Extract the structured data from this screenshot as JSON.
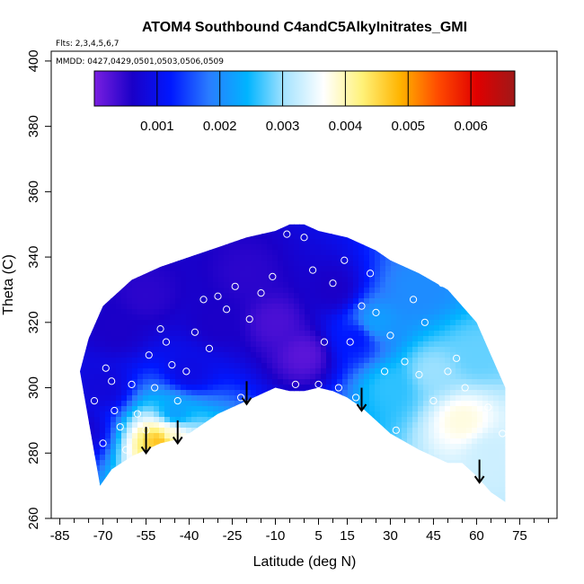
{
  "chart_data": {
    "type": "heatmap",
    "title": "ATOM4 Southbound C4andC5AlkyInitrates_GMI",
    "subtitle_flights": "Flts: 2,3,4,5,6,7",
    "subtitle_dates": "MMDD: 0427,0429,0501,0503,0506,0509",
    "xlabel": "Latitude (deg N)",
    "ylabel": "Theta (C)",
    "xlim": [
      -88,
      88
    ],
    "ylim": [
      260,
      403
    ],
    "x_ticks": [
      -85,
      -70,
      -55,
      -40,
      -25,
      -10,
      5,
      15,
      30,
      45,
      60,
      75
    ],
    "x_tick_labels": [
      "-85",
      "-70",
      "-55",
      "-40",
      "-25",
      "-10",
      "5",
      "15",
      "30",
      "45",
      "60",
      "75"
    ],
    "y_ticks": [
      260,
      280,
      300,
      320,
      340,
      360,
      380,
      400
    ],
    "y_tick_labels": [
      "260",
      "280",
      "300",
      "320",
      "340",
      "360",
      "380",
      "400"
    ],
    "colorbar": {
      "range": [
        0,
        0.0067
      ],
      "tick_values": [
        0.001,
        0.002,
        0.003,
        0.004,
        0.005,
        0.006
      ],
      "tick_labels": [
        "0.001",
        "0.002",
        "0.003",
        "0.004",
        "0.005",
        "0.006"
      ],
      "colors": [
        "#7a1fe0",
        "#1a00c8",
        "#0018ff",
        "#2a7cff",
        "#00b4ff",
        "#a8e4ff",
        "#ffffff",
        "#fff27a",
        "#ffb400",
        "#ff4a00",
        "#e00000",
        "#a01818"
      ]
    },
    "surface_boundary": {
      "latitude": [
        -71,
        -67,
        -60,
        -55,
        -50,
        -45,
        -40,
        -35,
        -30,
        -25,
        -20,
        -15,
        -10,
        -5,
        0,
        5,
        10,
        15,
        20,
        25,
        30,
        40,
        50,
        55,
        60,
        65,
        70
      ],
      "theta": [
        270,
        275,
        279,
        281,
        283,
        284,
        286,
        289,
        292,
        294,
        296,
        298,
        300,
        299,
        299,
        300,
        299,
        297,
        294,
        290,
        286,
        281,
        277,
        277,
        273,
        268,
        265
      ]
    },
    "top_boundary": {
      "latitude": [
        -78,
        -75,
        -70,
        -60,
        -50,
        -40,
        -30,
        -20,
        -10,
        -5,
        0,
        5,
        10,
        15,
        20,
        25,
        30,
        40,
        50,
        55,
        60,
        65,
        70
      ],
      "theta": [
        305,
        315,
        325,
        333,
        337,
        340,
        343,
        346,
        348,
        350,
        350,
        348,
        347,
        346,
        344,
        342,
        339,
        335,
        330,
        325,
        320,
        310,
        300
      ]
    },
    "field_samples": [
      {
        "lat": -78,
        "theta": 287,
        "value": 0.0007
      },
      {
        "lat": -70,
        "theta": 300,
        "value": 0.0008
      },
      {
        "lat": -65,
        "theta": 318,
        "value": 0.0006
      },
      {
        "lat": -55,
        "theta": 328,
        "value": 0.0005
      },
      {
        "lat": -50,
        "theta": 284,
        "value": 0.0048
      },
      {
        "lat": -47,
        "theta": 286,
        "value": 0.0038
      },
      {
        "lat": -45,
        "theta": 292,
        "value": 0.0022
      },
      {
        "lat": -40,
        "theta": 305,
        "value": 0.0009
      },
      {
        "lat": -30,
        "theta": 320,
        "value": 0.0006
      },
      {
        "lat": -20,
        "theta": 335,
        "value": 0.0005
      },
      {
        "lat": -10,
        "theta": 320,
        "value": 0.0003
      },
      {
        "lat": 0,
        "theta": 310,
        "value": 0.0002
      },
      {
        "lat": 10,
        "theta": 330,
        "value": 0.0006
      },
      {
        "lat": 18,
        "theta": 315,
        "value": 0.0012
      },
      {
        "lat": 25,
        "theta": 320,
        "value": 0.0022
      },
      {
        "lat": 30,
        "theta": 300,
        "value": 0.0026
      },
      {
        "lat": 40,
        "theta": 330,
        "value": 0.002
      },
      {
        "lat": 45,
        "theta": 305,
        "value": 0.003
      },
      {
        "lat": 55,
        "theta": 290,
        "value": 0.0038
      },
      {
        "lat": 60,
        "theta": 310,
        "value": 0.0028
      },
      {
        "lat": 65,
        "theta": 280,
        "value": 0.0033
      }
    ],
    "sample_points": [
      {
        "lat": -78,
        "theta": 286
      },
      {
        "lat": -73,
        "theta": 296
      },
      {
        "lat": -70,
        "theta": 283
      },
      {
        "lat": -69,
        "theta": 306
      },
      {
        "lat": -67,
        "theta": 302
      },
      {
        "lat": -66,
        "theta": 293
      },
      {
        "lat": -64,
        "theta": 288
      },
      {
        "lat": -62,
        "theta": 281
      },
      {
        "lat": -60,
        "theta": 301
      },
      {
        "lat": -58,
        "theta": 292
      },
      {
        "lat": -55,
        "theta": 287
      },
      {
        "lat": -54,
        "theta": 310
      },
      {
        "lat": -52,
        "theta": 300
      },
      {
        "lat": -50,
        "theta": 318
      },
      {
        "lat": -48,
        "theta": 314
      },
      {
        "lat": -46,
        "theta": 307
      },
      {
        "lat": -44,
        "theta": 296
      },
      {
        "lat": -41,
        "theta": 305
      },
      {
        "lat": -38,
        "theta": 317
      },
      {
        "lat": -35,
        "theta": 327
      },
      {
        "lat": -33,
        "theta": 312
      },
      {
        "lat": -30,
        "theta": 328
      },
      {
        "lat": -27,
        "theta": 324
      },
      {
        "lat": -24,
        "theta": 331
      },
      {
        "lat": -22,
        "theta": 297
      },
      {
        "lat": -19,
        "theta": 321
      },
      {
        "lat": -15,
        "theta": 329
      },
      {
        "lat": -11,
        "theta": 334
      },
      {
        "lat": -6,
        "theta": 347
      },
      {
        "lat": -3,
        "theta": 301
      },
      {
        "lat": 0,
        "theta": 346
      },
      {
        "lat": 3,
        "theta": 336
      },
      {
        "lat": 5,
        "theta": 301
      },
      {
        "lat": 7,
        "theta": 314
      },
      {
        "lat": 10,
        "theta": 332
      },
      {
        "lat": 12,
        "theta": 300
      },
      {
        "lat": 14,
        "theta": 339
      },
      {
        "lat": 16,
        "theta": 314
      },
      {
        "lat": 18,
        "theta": 297
      },
      {
        "lat": 20,
        "theta": 325
      },
      {
        "lat": 23,
        "theta": 335
      },
      {
        "lat": 25,
        "theta": 323
      },
      {
        "lat": 28,
        "theta": 305
      },
      {
        "lat": 30,
        "theta": 316
      },
      {
        "lat": 32,
        "theta": 287
      },
      {
        "lat": 35,
        "theta": 308
      },
      {
        "lat": 38,
        "theta": 327
      },
      {
        "lat": 40,
        "theta": 304
      },
      {
        "lat": 42,
        "theta": 320
      },
      {
        "lat": 45,
        "theta": 296
      },
      {
        "lat": 48,
        "theta": 332
      },
      {
        "lat": 50,
        "theta": 305
      },
      {
        "lat": 53,
        "theta": 309
      },
      {
        "lat": 56,
        "theta": 300
      },
      {
        "lat": 60,
        "theta": 327
      },
      {
        "lat": 64,
        "theta": 294
      },
      {
        "lat": 69,
        "theta": 286
      }
    ],
    "arrows": [
      {
        "lat": -55,
        "theta_top": 288,
        "theta_bottom": 280
      },
      {
        "lat": -44,
        "theta_top": 290,
        "theta_bottom": 283
      },
      {
        "lat": -20,
        "theta_top": 302,
        "theta_bottom": 295
      },
      {
        "lat": 20,
        "theta_top": 300,
        "theta_bottom": 293
      },
      {
        "lat": 61,
        "theta_top": 278,
        "theta_bottom": 271
      }
    ]
  }
}
